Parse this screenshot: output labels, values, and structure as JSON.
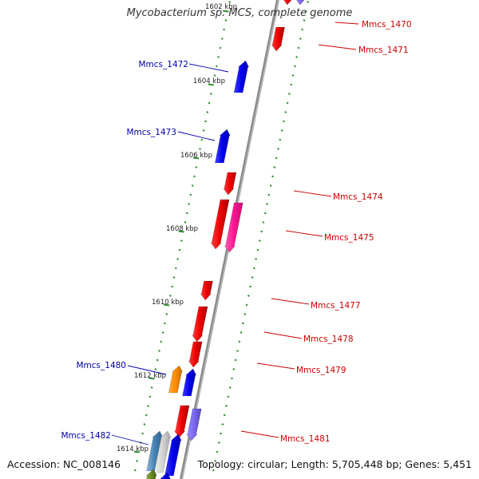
{
  "title": "Mycobacterium sp. MCS, complete genome",
  "footer": {
    "accession": "Accession: NC_008146",
    "topology": "Topology: circular; Length: 5,705,448 bp; Genes: 5,451"
  },
  "colors": {
    "backbone": "#8a8a8a",
    "tick": "#2e8b2e",
    "forward_label": "#cc0000",
    "reverse_label": "#0000aa"
  },
  "scale_labels": [
    "1602 kbp",
    "1604 kbp",
    "1606 kbp",
    "1608 kbp",
    "1610 kbp",
    "1612 kbp",
    "1614 kbp"
  ],
  "gene_labels": {
    "forward": [
      "Mmcs_1470",
      "Mmcs_1471",
      "Mmcs_1474",
      "Mmcs_1475",
      "Mmcs_1477",
      "Mmcs_1478",
      "Mmcs_1479",
      "Mmcs_1481"
    ],
    "reverse": [
      "Mmcs_1472",
      "Mmcs_1473",
      "Mmcs_1480",
      "Mmcs_1482"
    ]
  },
  "gene_colors": [
    "#ee0000",
    "#0000ee",
    "#ff1493",
    "#7b68ee",
    "#ff8c00",
    "#4682b4",
    "#6b8e23",
    "#d3d3d3"
  ]
}
